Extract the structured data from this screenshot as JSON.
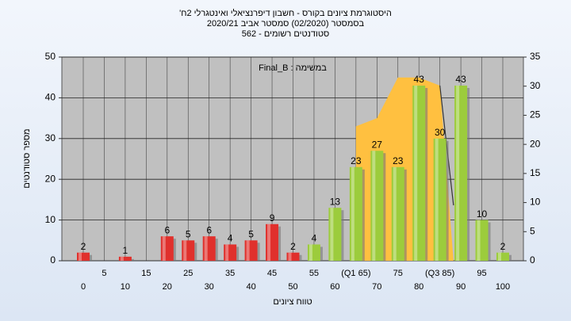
{
  "chart_data": {
    "type": "bar",
    "title": "היסטוגרמת ציונים בקורס - חשבון דיפרנציאלי ואינטגרלי 2ח'",
    "subtitle": "בסמסטר (02/2020)  סמסטר אביב 2020/21",
    "subtitle2": "סטודנטים רשומים - 562",
    "annotation": "במשימה : Final_B",
    "ylabel": "מספר סטודנטים",
    "xlabel": "טווח ציונים",
    "categories": [
      "0",
      "5",
      "10",
      "15",
      "20",
      "25",
      "30",
      "35",
      "40",
      "45",
      "50",
      "55",
      "60",
      "(Q1 65)",
      "70",
      "75",
      "80",
      "(Q3 85)",
      "90",
      "95",
      "100"
    ],
    "values": [
      2,
      null,
      1,
      null,
      6,
      5,
      6,
      4,
      5,
      9,
      2,
      4,
      13,
      23,
      27,
      23,
      43,
      30,
      43,
      10,
      2
    ],
    "colors": [
      "#e0302c",
      "#e0302c",
      "#e0302c",
      "#e0302c",
      "#e0302c",
      "#e0302c",
      "#e0302c",
      "#e0302c",
      "#e0302c",
      "#e0302c",
      "#e0302c",
      "#9ccc3c",
      "#9ccc3c",
      "#9ccc3c",
      "#9ccc3c",
      "#9ccc3c",
      "#9ccc3c",
      "#9ccc3c",
      "#9ccc3c",
      "#9ccc3c",
      "#9ccc3c"
    ],
    "band": {
      "color": "#ffc040",
      "values": [
        null,
        null,
        null,
        null,
        null,
        null,
        null,
        null,
        null,
        null,
        null,
        null,
        null,
        33,
        35,
        45,
        45,
        43,
        null,
        null,
        null
      ]
    },
    "ylim": [
      0,
      50
    ],
    "yticks": [
      0,
      10,
      20,
      30,
      40,
      50
    ],
    "y2lim": [
      0,
      35
    ],
    "y2ticks": [
      0,
      5,
      10,
      15,
      20,
      25,
      30,
      35
    ],
    "grid": true
  }
}
